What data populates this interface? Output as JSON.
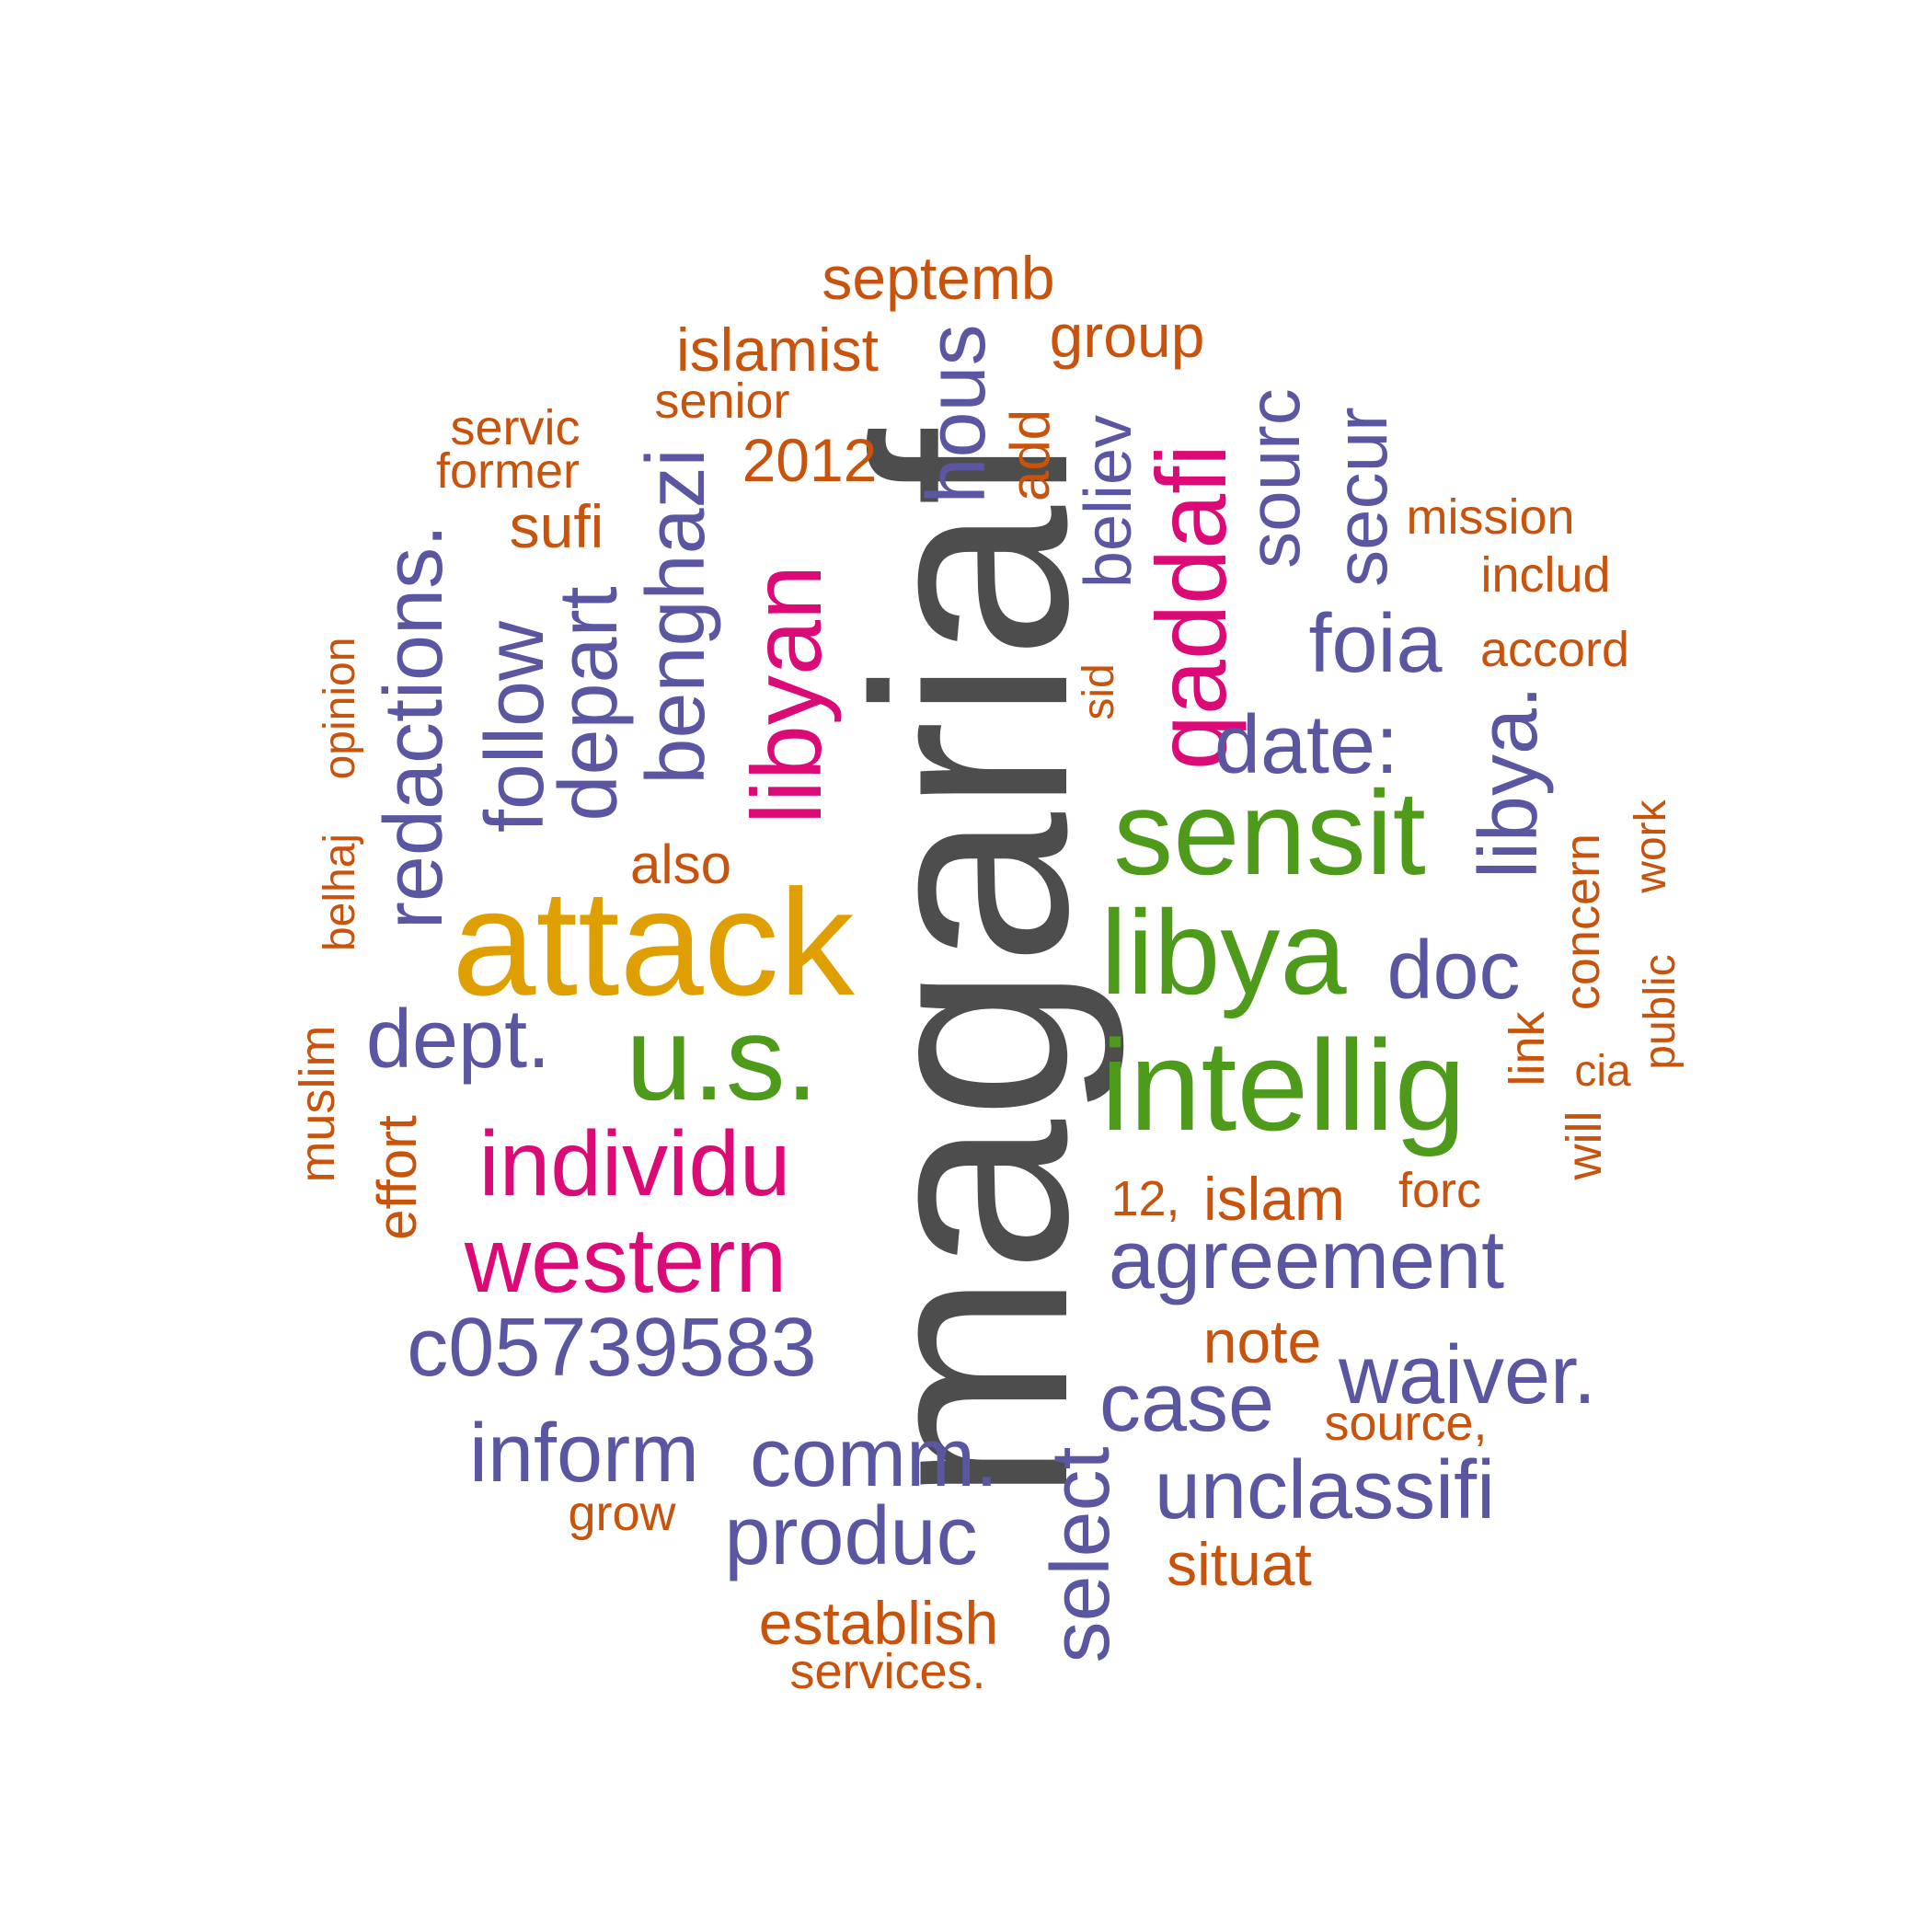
{
  "colors": {
    "gray": "#4d4d4d",
    "orange": "#df9f00",
    "green": "#4e9a1b",
    "magenta": "#db0a76",
    "purple": "#5b56a1",
    "rust": "#c8530c"
  },
  "words": [
    {
      "text": "magariaf",
      "weight": 10,
      "color": "gray"
    },
    {
      "text": "attack",
      "weight": 7,
      "color": "orange"
    },
    {
      "text": "intellig",
      "weight": 6,
      "color": "green"
    },
    {
      "text": "libya",
      "weight": 6,
      "color": "green"
    },
    {
      "text": "sensit",
      "weight": 6,
      "color": "green"
    },
    {
      "text": "u.s.",
      "weight": 6,
      "color": "green"
    },
    {
      "text": "libyan",
      "weight": 5,
      "color": "magenta"
    },
    {
      "text": "qaddafi",
      "weight": 5,
      "color": "magenta"
    },
    {
      "text": "individu",
      "weight": 5,
      "color": "magenta"
    },
    {
      "text": "western",
      "weight": 5,
      "color": "magenta"
    },
    {
      "text": "c05739583",
      "weight": 4,
      "color": "purple"
    },
    {
      "text": "agreement",
      "weight": 4,
      "color": "purple"
    },
    {
      "text": "unclassifi",
      "weight": 4,
      "color": "purple"
    },
    {
      "text": "waiver.",
      "weight": 4,
      "color": "purple"
    },
    {
      "text": "produc",
      "weight": 4,
      "color": "purple"
    },
    {
      "text": "inform",
      "weight": 4,
      "color": "purple"
    },
    {
      "text": "comm.",
      "weight": 4,
      "color": "purple"
    },
    {
      "text": "case",
      "weight": 4,
      "color": "purple"
    },
    {
      "text": "select",
      "weight": 4,
      "color": "purple"
    },
    {
      "text": "dept.",
      "weight": 4,
      "color": "purple"
    },
    {
      "text": "doc",
      "weight": 4,
      "color": "purple"
    },
    {
      "text": "libya.",
      "weight": 4,
      "color": "purple"
    },
    {
      "text": "date:",
      "weight": 4,
      "color": "purple"
    },
    {
      "text": "foia",
      "weight": 4,
      "color": "purple"
    },
    {
      "text": "redactions.",
      "weight": 4,
      "color": "purple"
    },
    {
      "text": "follow",
      "weight": 4,
      "color": "purple"
    },
    {
      "text": "depart",
      "weight": 4,
      "color": "purple"
    },
    {
      "text": "benghazi",
      "weight": 4,
      "color": "purple"
    },
    {
      "text": "hous",
      "weight": 4,
      "color": "purple"
    },
    {
      "text": "sourc",
      "weight": 4,
      "color": "purple"
    },
    {
      "text": "secur",
      "weight": 4,
      "color": "purple"
    },
    {
      "text": "believ",
      "weight": 4,
      "color": "purple"
    },
    {
      "text": "septemb",
      "weight": 3,
      "color": "rust"
    },
    {
      "text": "islamist",
      "weight": 3,
      "color": "rust"
    },
    {
      "text": "group",
      "weight": 3,
      "color": "rust"
    },
    {
      "text": "senior",
      "weight": 3,
      "color": "rust"
    },
    {
      "text": "servic",
      "weight": 3,
      "color": "rust"
    },
    {
      "text": "former",
      "weight": 3,
      "color": "rust"
    },
    {
      "text": "2012",
      "weight": 3,
      "color": "rust"
    },
    {
      "text": "sufi",
      "weight": 3,
      "color": "rust"
    },
    {
      "text": "add",
      "weight": 3,
      "color": "rust"
    },
    {
      "text": "mission",
      "weight": 3,
      "color": "rust"
    },
    {
      "text": "includ",
      "weight": 3,
      "color": "rust"
    },
    {
      "text": "accord",
      "weight": 3,
      "color": "rust"
    },
    {
      "text": "sid",
      "weight": 3,
      "color": "rust"
    },
    {
      "text": "belhaj",
      "weight": 3,
      "color": "rust"
    },
    {
      "text": "opinion",
      "weight": 3,
      "color": "rust"
    },
    {
      "text": "also",
      "weight": 3,
      "color": "rust"
    },
    {
      "text": "work",
      "weight": 3,
      "color": "rust"
    },
    {
      "text": "concern",
      "weight": 3,
      "color": "rust"
    },
    {
      "text": "public",
      "weight": 3,
      "color": "rust"
    },
    {
      "text": "link",
      "weight": 3,
      "color": "rust"
    },
    {
      "text": "cia",
      "weight": 3,
      "color": "rust"
    },
    {
      "text": "will",
      "weight": 3,
      "color": "rust"
    },
    {
      "text": "muslim",
      "weight": 3,
      "color": "rust"
    },
    {
      "text": "effort",
      "weight": 3,
      "color": "rust"
    },
    {
      "text": "12,",
      "weight": 3,
      "color": "rust"
    },
    {
      "text": "islam",
      "weight": 3,
      "color": "rust"
    },
    {
      "text": "forc",
      "weight": 3,
      "color": "rust"
    },
    {
      "text": "note",
      "weight": 3,
      "color": "rust"
    },
    {
      "text": "source,",
      "weight": 3,
      "color": "rust"
    },
    {
      "text": "grow",
      "weight": 3,
      "color": "rust"
    },
    {
      "text": "situat",
      "weight": 3,
      "color": "rust"
    },
    {
      "text": "establish",
      "weight": 3,
      "color": "rust"
    },
    {
      "text": "services.",
      "weight": 3,
      "color": "rust"
    }
  ]
}
